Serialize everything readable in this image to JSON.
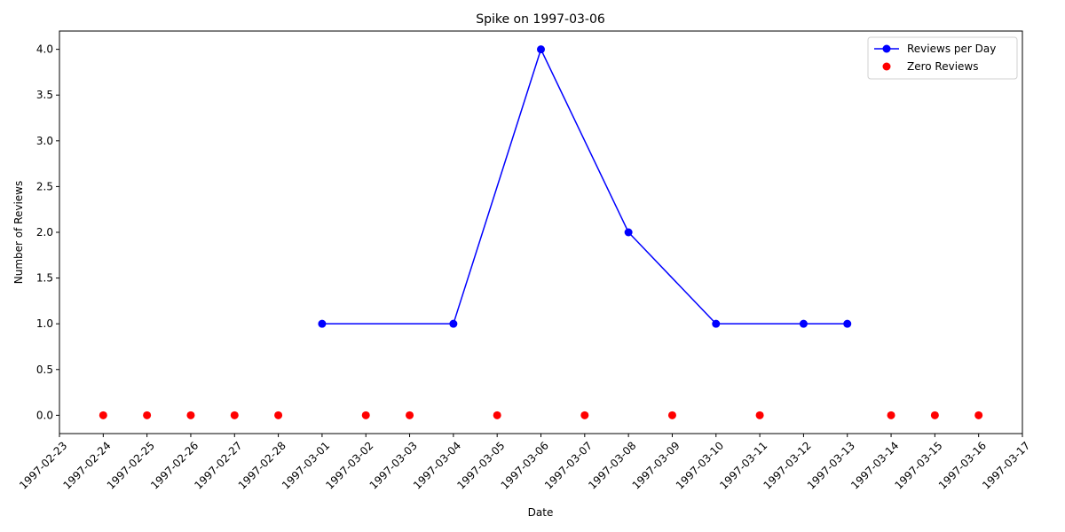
{
  "chart_data": {
    "type": "line",
    "title": "Spike on 1997-03-06",
    "xlabel": "Date",
    "ylabel": "Number of Reviews",
    "x_ticks": [
      "1997-02-23",
      "1997-02-24",
      "1997-02-25",
      "1997-02-26",
      "1997-02-27",
      "1997-02-28",
      "1997-03-01",
      "1997-03-02",
      "1997-03-03",
      "1997-03-04",
      "1997-03-05",
      "1997-03-06",
      "1997-03-07",
      "1997-03-08",
      "1997-03-09",
      "1997-03-10",
      "1997-03-11",
      "1997-03-12",
      "1997-03-13",
      "1997-03-14",
      "1997-03-15",
      "1997-03-16",
      "1997-03-17"
    ],
    "y_ticks": [
      "0.0",
      "0.5",
      "1.0",
      "1.5",
      "2.0",
      "2.5",
      "3.0",
      "3.5",
      "4.0"
    ],
    "xlim": [
      "1997-02-23",
      "1997-03-17"
    ],
    "ylim": [
      -0.2,
      4.2
    ],
    "grid": false,
    "legend": "top-right",
    "series": [
      {
        "name": "Reviews per Day",
        "kind": "line-marker",
        "color": "#0000ff",
        "x": [
          "1997-03-01",
          "1997-03-04",
          "1997-03-06",
          "1997-03-08",
          "1997-03-10",
          "1997-03-12",
          "1997-03-13"
        ],
        "y": [
          1,
          1,
          4,
          2,
          1,
          1,
          1
        ]
      },
      {
        "name": "Zero Reviews",
        "kind": "scatter",
        "color": "#ff0000",
        "x": [
          "1997-02-24",
          "1997-02-25",
          "1997-02-26",
          "1997-02-27",
          "1997-02-28",
          "1997-03-02",
          "1997-03-03",
          "1997-03-05",
          "1997-03-07",
          "1997-03-09",
          "1997-03-11",
          "1997-03-14",
          "1997-03-15",
          "1997-03-16"
        ],
        "y": [
          0,
          0,
          0,
          0,
          0,
          0,
          0,
          0,
          0,
          0,
          0,
          0,
          0,
          0
        ]
      }
    ]
  }
}
